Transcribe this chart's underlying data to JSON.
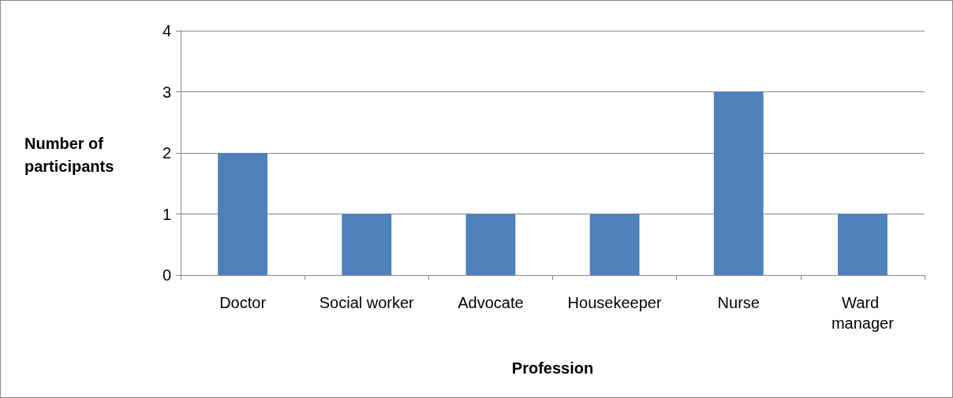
{
  "chart_data": {
    "type": "bar",
    "xlabel": "Profession",
    "ylabel": "Number of participants",
    "categories": [
      "Doctor",
      "Social worker",
      "Advocate",
      "Housekeeper",
      "Nurse",
      "Ward manager"
    ],
    "values": [
      2,
      1,
      1,
      1,
      3,
      1
    ],
    "color": "#4f81bd",
    "ylim": [
      0,
      4
    ],
    "yticks": [
      0,
      1,
      2,
      3,
      4
    ],
    "grid": "y"
  }
}
